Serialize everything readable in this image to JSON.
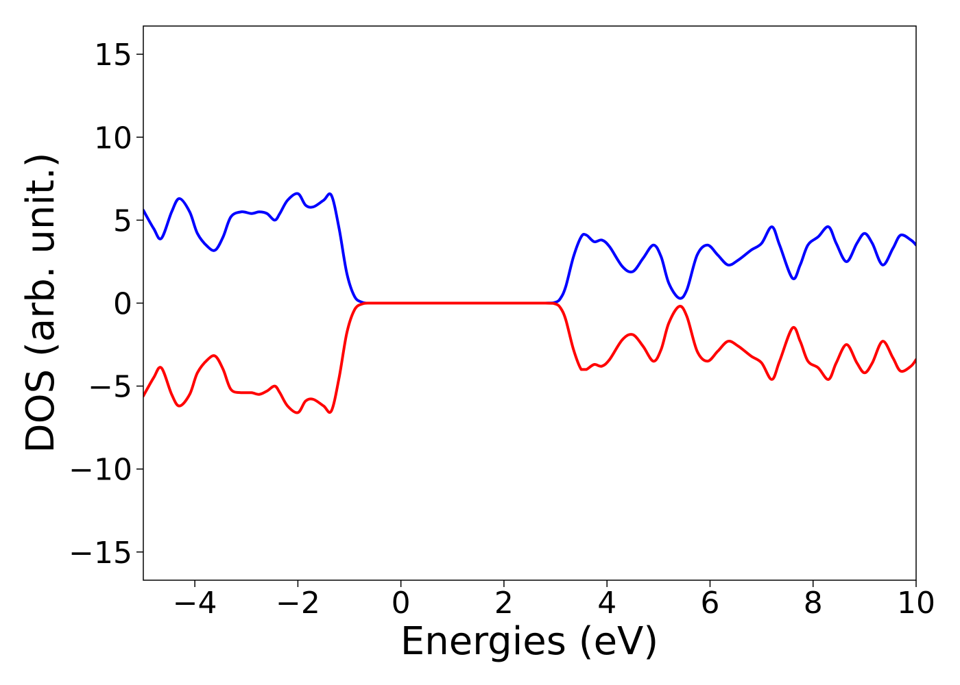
{
  "chart_data": {
    "type": "line",
    "title": "",
    "xlabel": "Energies (eV)",
    "ylabel": "DOS (arb. unit.)",
    "xlim": [
      -5,
      10
    ],
    "ylim": [
      -16.7,
      16.7
    ],
    "grid": false,
    "legend": "none",
    "x_ticks": [
      -4,
      -2,
      0,
      2,
      4,
      6,
      8,
      10
    ],
    "x_tick_labels": [
      "−4",
      "−2",
      "0",
      "2",
      "4",
      "6",
      "8",
      "10"
    ],
    "y_ticks": [
      15,
      10,
      5,
      0,
      -5,
      -10,
      -15
    ],
    "y_tick_labels": [
      "15",
      "10",
      "5",
      "0",
      "−5",
      "−10",
      "−15"
    ],
    "series": [
      {
        "color": "#0000ff",
        "x": [
          -5.0,
          -4.8,
          -4.65,
          -4.45,
          -4.3,
          -4.1,
          -3.95,
          -3.75,
          -3.6,
          -3.45,
          -3.3,
          -3.1,
          -2.9,
          -2.75,
          -2.6,
          -2.45,
          -2.35,
          -2.2,
          -2.0,
          -1.85,
          -1.7,
          -1.5,
          -1.35,
          -1.2,
          -1.05,
          -0.9,
          -0.75,
          -0.6,
          -0.4,
          0.0,
          1.0,
          2.0,
          2.8,
          3.0,
          3.1,
          3.2,
          3.35,
          3.5,
          3.6,
          3.75,
          3.9,
          4.05,
          4.3,
          4.5,
          4.7,
          4.9,
          5.05,
          5.2,
          5.4,
          5.55,
          5.75,
          5.95,
          6.15,
          6.35,
          6.55,
          6.8,
          7.0,
          7.2,
          7.35,
          7.6,
          7.75,
          7.9,
          8.1,
          8.3,
          8.45,
          8.65,
          8.85,
          9.0,
          9.15,
          9.35,
          9.55,
          9.7,
          9.9,
          10.0
        ],
        "y": [
          5.6,
          4.5,
          3.9,
          5.5,
          6.3,
          5.5,
          4.2,
          3.4,
          3.2,
          4.0,
          5.2,
          5.5,
          5.4,
          5.5,
          5.4,
          5.0,
          5.4,
          6.2,
          6.6,
          5.9,
          5.8,
          6.2,
          6.5,
          4.5,
          1.8,
          0.4,
          0.05,
          0.0,
          0.0,
          0.0,
          0.0,
          0.0,
          0.0,
          0.05,
          0.3,
          1.0,
          2.8,
          4.0,
          4.1,
          3.7,
          3.8,
          3.4,
          2.2,
          1.9,
          2.7,
          3.5,
          2.8,
          1.2,
          0.3,
          0.8,
          2.9,
          3.5,
          2.9,
          2.3,
          2.6,
          3.2,
          3.6,
          4.6,
          3.5,
          1.5,
          2.3,
          3.5,
          4.0,
          4.6,
          3.6,
          2.5,
          3.6,
          4.2,
          3.6,
          2.3,
          3.3,
          4.1,
          3.8,
          3.5
        ]
      },
      {
        "color": "#ff0000",
        "x": [
          -5.0,
          -4.8,
          -4.65,
          -4.45,
          -4.3,
          -4.1,
          -3.95,
          -3.75,
          -3.6,
          -3.45,
          -3.3,
          -3.1,
          -2.9,
          -2.75,
          -2.6,
          -2.45,
          -2.35,
          -2.2,
          -2.0,
          -1.85,
          -1.7,
          -1.5,
          -1.35,
          -1.2,
          -1.05,
          -0.9,
          -0.75,
          -0.6,
          -0.4,
          0.0,
          1.0,
          2.0,
          2.8,
          3.0,
          3.1,
          3.2,
          3.35,
          3.5,
          3.6,
          3.75,
          3.9,
          4.05,
          4.3,
          4.5,
          4.7,
          4.9,
          5.05,
          5.2,
          5.4,
          5.55,
          5.75,
          5.95,
          6.15,
          6.35,
          6.55,
          6.8,
          7.0,
          7.2,
          7.35,
          7.6,
          7.75,
          7.9,
          8.1,
          8.3,
          8.45,
          8.65,
          8.85,
          9.0,
          9.15,
          9.35,
          9.55,
          9.7,
          9.9,
          10.0
        ],
        "y": [
          -5.6,
          -4.5,
          -3.9,
          -5.5,
          -6.2,
          -5.5,
          -4.2,
          -3.4,
          -3.2,
          -4.0,
          -5.2,
          -5.4,
          -5.4,
          -5.5,
          -5.3,
          -5.0,
          -5.4,
          -6.2,
          -6.6,
          -5.9,
          -5.8,
          -6.2,
          -6.5,
          -4.5,
          -1.8,
          -0.4,
          -0.05,
          0.0,
          0.0,
          0.0,
          0.0,
          0.0,
          0.0,
          -0.05,
          -0.3,
          -1.0,
          -2.8,
          -4.0,
          -4.0,
          -3.7,
          -3.8,
          -3.4,
          -2.2,
          -1.9,
          -2.6,
          -3.5,
          -2.8,
          -1.2,
          -0.2,
          -0.8,
          -2.9,
          -3.5,
          -2.9,
          -2.3,
          -2.6,
          -3.2,
          -3.6,
          -4.6,
          -3.5,
          -1.5,
          -2.3,
          -3.5,
          -3.9,
          -4.6,
          -3.6,
          -2.5,
          -3.6,
          -4.2,
          -3.6,
          -2.3,
          -3.3,
          -4.1,
          -3.8,
          -3.4
        ]
      }
    ]
  }
}
